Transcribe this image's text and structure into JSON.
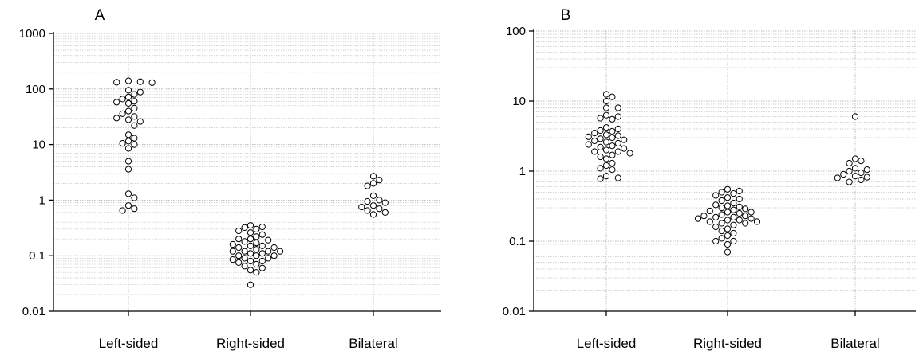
{
  "chart_data": [
    {
      "type": "scatter",
      "panel_label": "A",
      "yscale": "log",
      "ylim": [
        0.01,
        1000
      ],
      "yticks": [
        "0.01",
        "0.1",
        "1",
        "10",
        "100",
        "1000"
      ],
      "grid": true,
      "categories": [
        "Left-sided",
        "Right-sided",
        "Bilateral"
      ],
      "groups": [
        {
          "category": "Left-sided",
          "values": [
            130,
            132,
            135,
            140,
            95,
            88,
            80,
            72,
            66,
            60,
            58,
            55,
            45,
            40,
            36,
            32,
            30,
            28,
            26,
            22,
            15,
            13,
            11.5,
            10.5,
            10,
            8.5,
            5,
            3.6,
            1.3,
            1.1,
            0.8,
            0.7,
            0.65
          ]
        },
        {
          "category": "Right-sided",
          "values": [
            0.35,
            0.33,
            0.32,
            0.3,
            0.28,
            0.26,
            0.24,
            0.22,
            0.2,
            0.2,
            0.19,
            0.18,
            0.17,
            0.16,
            0.15,
            0.15,
            0.14,
            0.14,
            0.13,
            0.12,
            0.12,
            0.12,
            0.12,
            0.11,
            0.11,
            0.1,
            0.1,
            0.1,
            0.09,
            0.09,
            0.085,
            0.08,
            0.08,
            0.075,
            0.07,
            0.065,
            0.06,
            0.055,
            0.05,
            0.03
          ]
        },
        {
          "category": "Bilateral",
          "values": [
            2.7,
            2.3,
            2.0,
            1.8,
            1.2,
            1.0,
            0.95,
            0.9,
            0.8,
            0.75,
            0.7,
            0.65,
            0.6,
            0.55
          ]
        }
      ]
    },
    {
      "type": "scatter",
      "panel_label": "B",
      "yscale": "log",
      "ylim": [
        0.01,
        100
      ],
      "yticks": [
        "0.01",
        "0.1",
        "1",
        "10",
        "100"
      ],
      "grid": true,
      "categories": [
        "Left-sided",
        "Right-sided",
        "Bilateral"
      ],
      "groups": [
        {
          "category": "Left-sided",
          "values": [
            12.5,
            11.5,
            10,
            8,
            8,
            6.3,
            6,
            5.7,
            5.5,
            4.2,
            4,
            3.8,
            3.7,
            3.5,
            3.3,
            3.2,
            3.1,
            3,
            2.9,
            2.8,
            2.7,
            2.6,
            2.5,
            2.4,
            2.3,
            2.2,
            2.1,
            2,
            1.9,
            1.9,
            1.8,
            1.7,
            1.6,
            1.5,
            1.3,
            1.2,
            1.1,
            1.05,
            0.85,
            0.8,
            0.78
          ]
        },
        {
          "category": "Right-sided",
          "values": [
            0.55,
            0.52,
            0.5,
            0.48,
            0.45,
            0.42,
            0.4,
            0.38,
            0.35,
            0.33,
            0.32,
            0.31,
            0.3,
            0.29,
            0.28,
            0.27,
            0.26,
            0.26,
            0.25,
            0.24,
            0.23,
            0.23,
            0.22,
            0.22,
            0.21,
            0.21,
            0.2,
            0.2,
            0.19,
            0.19,
            0.18,
            0.18,
            0.17,
            0.16,
            0.15,
            0.14,
            0.13,
            0.12,
            0.11,
            0.1,
            0.1,
            0.09,
            0.07
          ]
        },
        {
          "category": "Bilateral",
          "values": [
            6.0,
            1.5,
            1.4,
            1.3,
            1.1,
            1.05,
            1.0,
            0.95,
            0.9,
            0.85,
            0.82,
            0.8,
            0.75,
            0.7
          ]
        }
      ]
    }
  ]
}
